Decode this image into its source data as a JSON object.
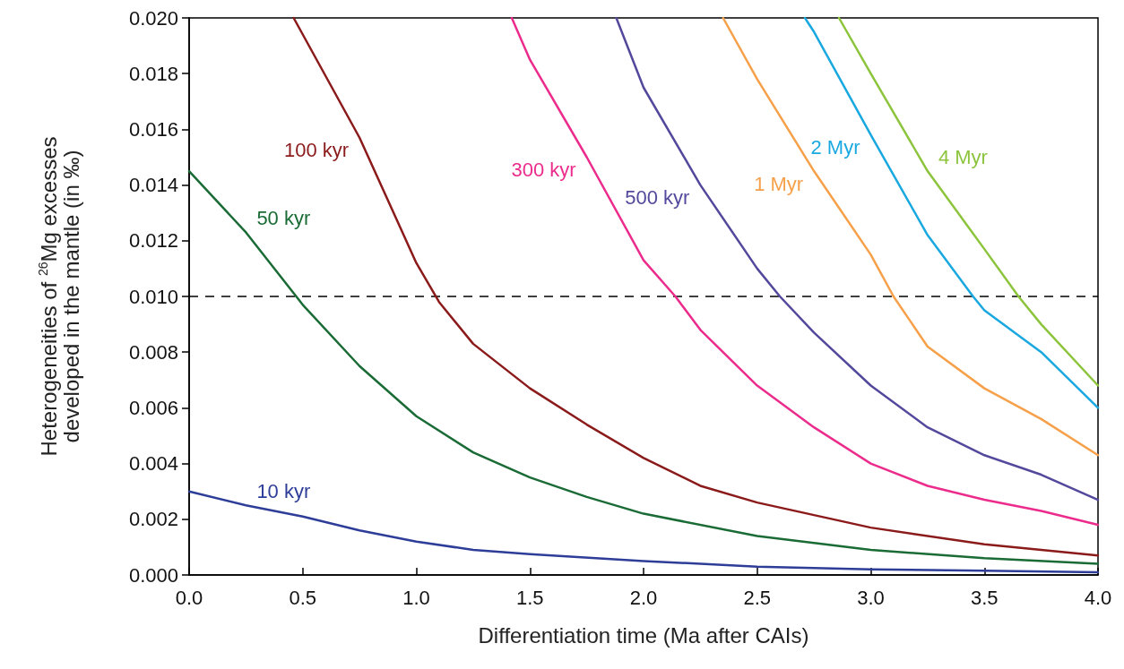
{
  "chart_data": {
    "type": "line",
    "xlabel": "Differentiation time (Ma after CAIs)",
    "ylabel": "Heterogeneities of $^{26}$Mg excesses\ndeveloped in the mantle (in ‰)",
    "xlim": [
      0,
      4
    ],
    "xticks": [
      {
        "value": 0,
        "label": "0.0"
      },
      {
        "value": 0.5,
        "label": "0.5"
      },
      {
        "value": 1,
        "label": "1.0"
      },
      {
        "value": 1.5,
        "label": "1.5"
      },
      {
        "value": 2,
        "label": "2.0"
      },
      {
        "value": 2.5,
        "label": "2.5"
      },
      {
        "value": 3,
        "label": "3.0"
      },
      {
        "value": 3.5,
        "label": "3.5"
      },
      {
        "value": 4,
        "label": "4.0"
      }
    ],
    "ylim": [
      0,
      0.02
    ],
    "yticks": [
      {
        "value": 0,
        "label": "0.000"
      },
      {
        "value": 0.002,
        "label": "0.002"
      },
      {
        "value": 0.004,
        "label": "0.004"
      },
      {
        "value": 0.006,
        "label": "0.006"
      },
      {
        "value": 0.008,
        "label": "0.008"
      },
      {
        "value": 0.01,
        "label": "0.010"
      },
      {
        "value": 0.012,
        "label": "0.012"
      },
      {
        "value": 0.014,
        "label": "0.014"
      },
      {
        "value": 0.016,
        "label": "0.016"
      },
      {
        "value": 0.018,
        "label": "0.018"
      },
      {
        "value": 0.02,
        "label": "0.020"
      }
    ],
    "grid": false,
    "legend": false,
    "marker": "none",
    "line_style": "solid",
    "ref_lines": [
      {
        "axis": "y",
        "value": 0.01,
        "color": "#000000",
        "line_style": "dashed"
      }
    ],
    "series": [
      {
        "name": "10 kyr",
        "color": "#2e3d98",
        "x": [
          0,
          0.25,
          0.5,
          0.75,
          1,
          1.25,
          1.5,
          2,
          2.5,
          3,
          3.5,
          4
        ],
        "values": [
          0.003,
          0.0025,
          0.0021,
          0.0016,
          0.0012,
          0.0009,
          0.00075,
          0.0005,
          0.0003,
          0.0002,
          0.00015,
          0.0001
        ]
      },
      {
        "name": "50 kyr",
        "color": "#1a6b35",
        "x": [
          0,
          0.25,
          0.5,
          0.75,
          1,
          1.25,
          1.5,
          1.75,
          2,
          2.5,
          3,
          3.5,
          4
        ],
        "values": [
          0.0145,
          0.0123,
          0.0097,
          0.0075,
          0.0057,
          0.0044,
          0.0035,
          0.0028,
          0.0022,
          0.0014,
          0.0009,
          0.0006,
          0.0004
        ]
      },
      {
        "name": "100 kyr",
        "color": "#8b1a1a",
        "x": [
          0.46,
          0.75,
          1,
          1.1,
          1.25,
          1.5,
          1.75,
          2,
          2.25,
          2.5,
          3,
          3.5,
          4
        ],
        "values": [
          0.02,
          0.0157,
          0.0112,
          0.0098,
          0.0083,
          0.0067,
          0.0054,
          0.0042,
          0.0032,
          0.0026,
          0.0017,
          0.0011,
          0.0007
        ]
      },
      {
        "name": "300 kyr",
        "color": "#ec2c8c",
        "x": [
          1.42,
          1.5,
          1.75,
          2,
          2.14,
          2.25,
          2.5,
          2.75,
          3,
          3.25,
          3.5,
          3.75,
          4
        ],
        "values": [
          0.02,
          0.0185,
          0.015,
          0.0113,
          0.01,
          0.0088,
          0.0068,
          0.0053,
          0.004,
          0.0032,
          0.0027,
          0.0023,
          0.0018
        ]
      },
      {
        "name": "500 kyr",
        "color": "#52489c",
        "x": [
          1.88,
          2,
          2.25,
          2.5,
          2.6,
          2.75,
          3,
          3.25,
          3.5,
          3.75,
          4
        ],
        "values": [
          0.02,
          0.0175,
          0.014,
          0.011,
          0.01,
          0.0087,
          0.0068,
          0.0053,
          0.0043,
          0.0036,
          0.0027
        ]
      },
      {
        "name": "1 Myr",
        "color": "#f7a04a",
        "x": [
          2.35,
          2.5,
          2.75,
          3,
          3.1,
          3.25,
          3.5,
          3.75,
          4
        ],
        "values": [
          0.02,
          0.0178,
          0.0145,
          0.0115,
          0.01,
          0.0082,
          0.0067,
          0.0056,
          0.0043
        ]
      },
      {
        "name": "2 Myr",
        "color": "#1aa8e0",
        "x": [
          2.71,
          2.75,
          3,
          3.25,
          3.45,
          3.5,
          3.75,
          4
        ],
        "values": [
          0.02,
          0.0195,
          0.0158,
          0.0122,
          0.01,
          0.0095,
          0.008,
          0.006
        ]
      },
      {
        "name": "4 Myr",
        "color": "#8cc43c",
        "x": [
          2.86,
          3,
          3.25,
          3.5,
          3.65,
          3.75,
          4
        ],
        "values": [
          0.02,
          0.018,
          0.0145,
          0.0117,
          0.01,
          0.009,
          0.0068
        ]
      }
    ]
  }
}
